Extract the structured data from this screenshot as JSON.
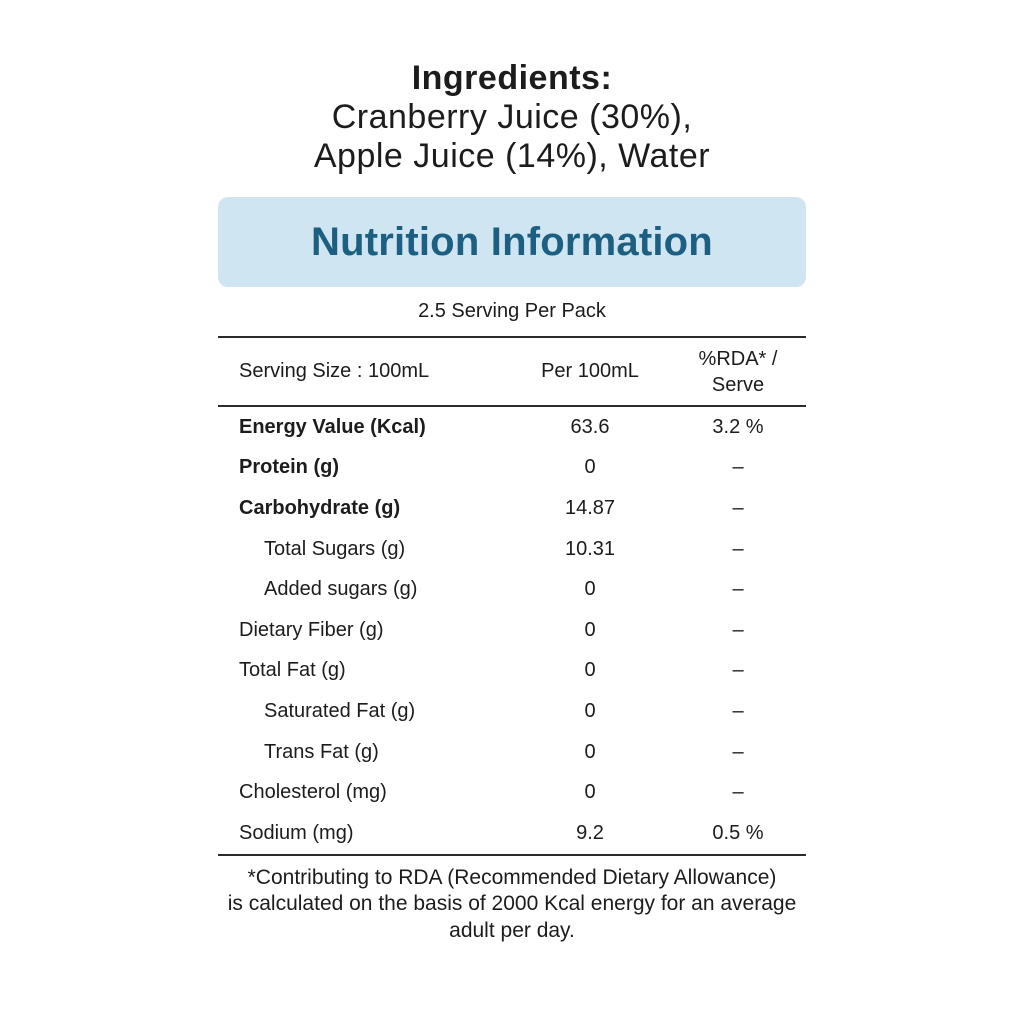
{
  "ingredients": {
    "heading": "Ingredients:",
    "lines": [
      "Cranberry Juice (30%),",
      "Apple Juice (14%), Water"
    ]
  },
  "nutrition": {
    "title": "Nutrition Information",
    "servings_note": "2.5 Serving Per Pack",
    "table": {
      "header": {
        "col1": "Serving Size : 100mL",
        "col2": "Per 100mL",
        "col3": "%RDA* / Serve"
      },
      "rows": [
        {
          "name": "Energy Value (Kcal)",
          "per_100ml": "63.6",
          "rda": "3.2 %"
        },
        {
          "name": "Protein (g)",
          "per_100ml": "0",
          "rda": "–"
        },
        {
          "name": "Carbohydrate (g)",
          "per_100ml": "14.87",
          "rda": "–"
        },
        {
          "name": "Total Sugars (g)",
          "per_100ml": "10.31",
          "rda": "–"
        },
        {
          "name": "Added sugars (g)",
          "per_100ml": "0",
          "rda": "–"
        },
        {
          "name": "Dietary Fiber (g)",
          "per_100ml": "0",
          "rda": "–"
        },
        {
          "name": "Total Fat (g)",
          "per_100ml": "0",
          "rda": "–"
        },
        {
          "name": "Saturated Fat (g)",
          "per_100ml": "0",
          "rda": "–"
        },
        {
          "name": "Trans Fat (g)",
          "per_100ml": "0",
          "rda": "–"
        },
        {
          "name": "Cholesterol (mg)",
          "per_100ml": "0",
          "rda": "–"
        },
        {
          "name": "Sodium (mg)",
          "per_100ml": "9.2",
          "rda": "0.5 %"
        }
      ]
    },
    "footnote_lines": [
      "*Contributing to RDA (Recommended Dietary Allowance)",
      "is calculated on the basis of 2000 Kcal energy for an average",
      "adult per day."
    ]
  },
  "colors": {
    "banner_background": "#cfe5f2",
    "banner_text": "#1d5f80",
    "body_text": "#1c1c1c",
    "rule_lines": "#2b2b2b"
  }
}
